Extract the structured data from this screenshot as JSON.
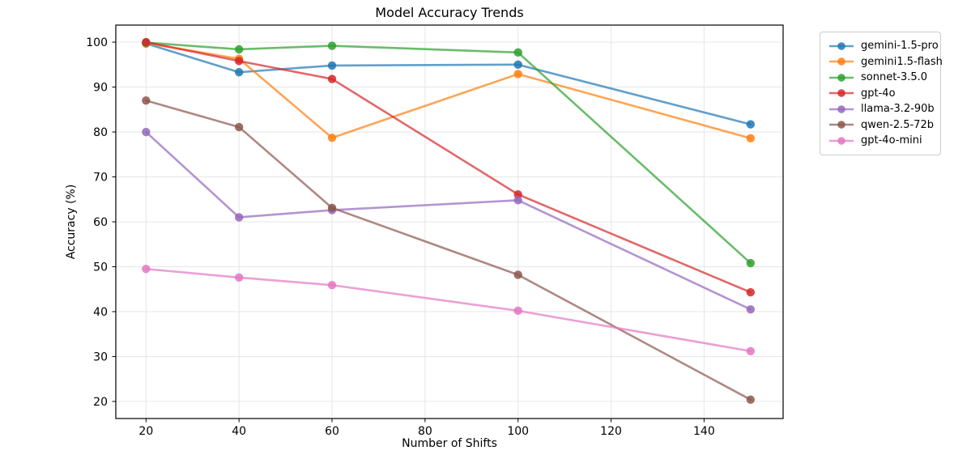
{
  "chart_data": {
    "type": "line",
    "title": "Model Accuracy Trends",
    "xlabel": "Number of Shifts",
    "ylabel": "Accuracy (%)",
    "x": [
      20,
      40,
      60,
      100,
      150
    ],
    "series": [
      {
        "name": "gemini-1.5-pro",
        "color": "#1f77b4",
        "values": [
          99.7,
          93.3,
          94.8,
          95.0,
          81.7
        ]
      },
      {
        "name": "gemini1.5-flash",
        "color": "#ff7f0e",
        "values": [
          99.8,
          96.3,
          78.7,
          92.9,
          78.6
        ]
      },
      {
        "name": "sonnet-3.5.0",
        "color": "#2ca02c",
        "values": [
          99.9,
          98.4,
          99.2,
          97.7,
          50.8
        ]
      },
      {
        "name": "gpt-4o",
        "color": "#d62728",
        "values": [
          100.0,
          95.8,
          91.8,
          66.1,
          44.3
        ]
      },
      {
        "name": "llama-3.2-90b",
        "color": "#9467bd",
        "values": [
          80.0,
          61.0,
          62.6,
          64.8,
          40.5
        ]
      },
      {
        "name": "qwen-2.5-72b",
        "color": "#8c564b",
        "values": [
          87.0,
          81.1,
          63.1,
          48.2,
          20.4
        ]
      },
      {
        "name": "gpt-4o-mini",
        "color": "#e377c2",
        "values": [
          49.5,
          47.6,
          45.9,
          40.2,
          31.2
        ]
      }
    ],
    "xticks": [
      20,
      40,
      60,
      80,
      100,
      120,
      140
    ],
    "yticks": [
      20,
      30,
      40,
      50,
      60,
      70,
      80,
      90,
      100
    ],
    "xlim": [
      13.5,
      157.0
    ],
    "ylim": [
      16.2,
      103.8
    ],
    "grid": true,
    "legend_position": "outside-right",
    "grid_color": "#e6e6e6",
    "spine_color": "#000000",
    "tick_label_color": "#000000"
  }
}
